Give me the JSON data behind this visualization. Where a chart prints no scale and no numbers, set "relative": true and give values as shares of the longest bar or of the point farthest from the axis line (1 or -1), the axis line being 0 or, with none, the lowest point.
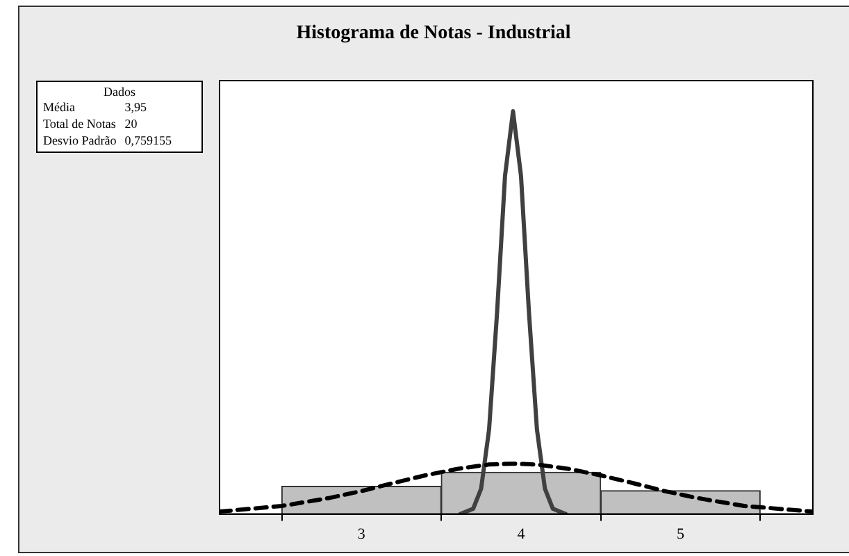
{
  "chart_data": {
    "type": "histogram",
    "title": "Histograma de Notas - Industrial",
    "relative": true,
    "xlim": [
      2.11,
      5.83
    ],
    "xticks": [
      3,
      4,
      5
    ],
    "tick_labels": "x",
    "grid": false,
    "legend": false,
    "annotations": [
      "Dados",
      "Média",
      "3,95",
      "Total de Notas",
      "20",
      "Desvio Padrão",
      "0,759155"
    ],
    "series": [
      {
        "color": "#c0c0c0",
        "bins": [
          2.5,
          3.5,
          4.5,
          5.5
        ],
        "values": [
          0.069,
          0.104,
          0.058
        ]
      },
      {
        "type": "line",
        "color": "#000000",
        "line_style": "dashed",
        "x": [
          2.11,
          2.5,
          2.8,
          3.0,
          3.2,
          3.4,
          3.6,
          3.8,
          3.95,
          4.1,
          4.3,
          4.5,
          4.7,
          4.9,
          5.1,
          5.4,
          5.83
        ],
        "values": [
          0.006,
          0.02,
          0.04,
          0.057,
          0.077,
          0.096,
          0.112,
          0.123,
          0.125,
          0.123,
          0.112,
          0.096,
          0.077,
          0.057,
          0.04,
          0.02,
          0.006
        ]
      },
      {
        "type": "line",
        "color": "#404040",
        "line_style": "solid",
        "x": [
          3.62,
          3.7,
          3.75,
          3.8,
          3.85,
          3.9,
          3.95,
          4.0,
          4.05,
          4.1,
          4.15,
          4.2,
          4.28
        ],
        "values": [
          0,
          0.013,
          0.063,
          0.21,
          0.5,
          0.84,
          1,
          0.84,
          0.5,
          0.21,
          0.063,
          0.013,
          0
        ]
      }
    ]
  }
}
